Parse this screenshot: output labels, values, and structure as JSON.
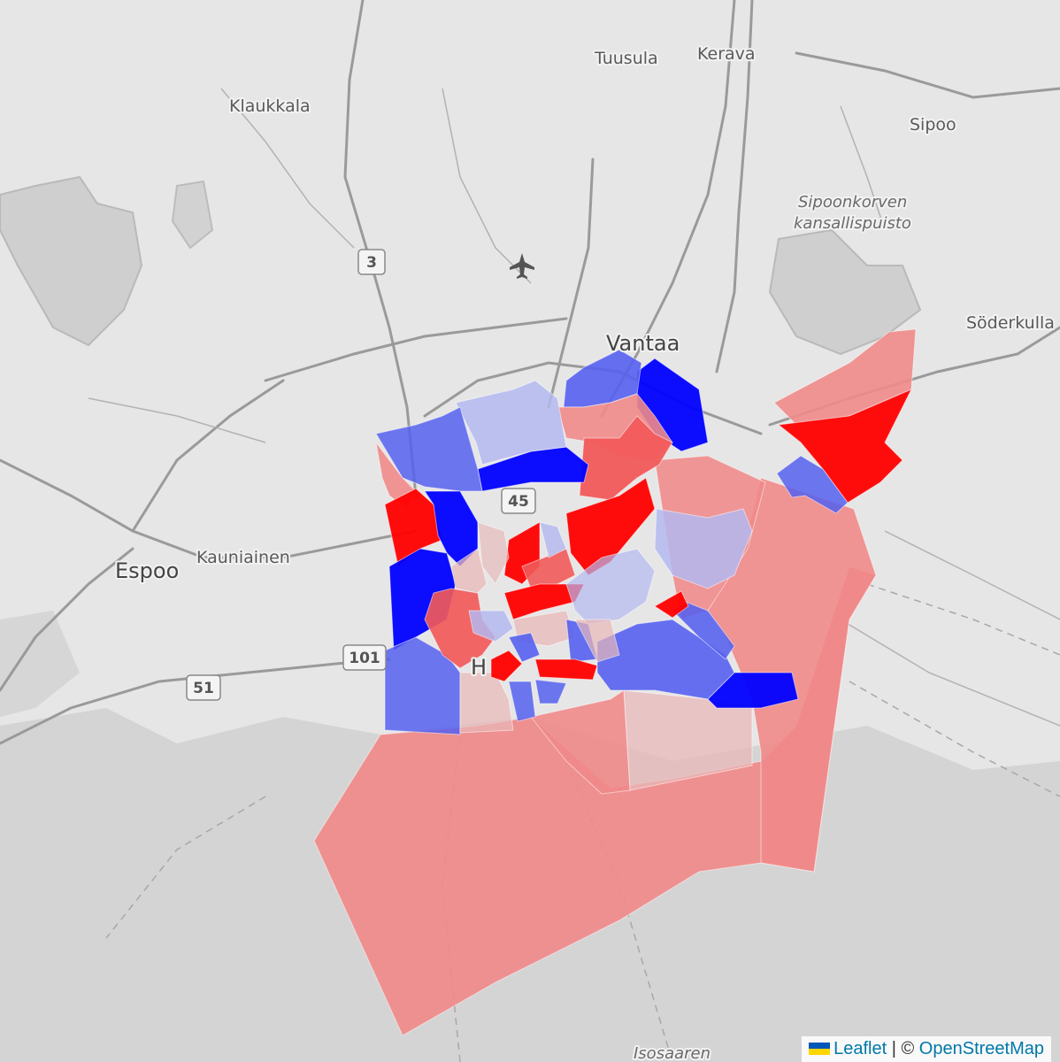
{
  "map": {
    "places": [
      {
        "id": "tuusula",
        "name": "Tuusula"
      },
      {
        "id": "kerava",
        "name": "Kerava"
      },
      {
        "id": "klaukkala",
        "name": "Klaukkala"
      },
      {
        "id": "sipoo",
        "name": "Sipoo"
      },
      {
        "id": "sipoonkorven1",
        "name": "Sipoonkorven"
      },
      {
        "id": "sipoonkorven2",
        "name": "kansallispuisto"
      },
      {
        "id": "vantaa",
        "name": "Vantaa"
      },
      {
        "id": "soderkulla",
        "name": "Söderkulla"
      },
      {
        "id": "espoo",
        "name": "Espoo"
      },
      {
        "id": "kauniainen",
        "name": "Kauniainen"
      },
      {
        "id": "helsinki",
        "name": "H"
      },
      {
        "id": "isosaaren",
        "name": "Isosaaren"
      }
    ],
    "road_shields": [
      "3",
      "45",
      "101",
      "51"
    ],
    "icons": {
      "airport": "airplane-icon"
    },
    "choropleth_colors": {
      "strong_red": "#ff0000",
      "medium_red": "#f25a5a",
      "light_red": "#f08a8a",
      "pale_red": "#e8b8b8",
      "pale_blue": "#b4b8f0",
      "medium_blue": "#5560ee",
      "strong_blue": "#0000ff"
    }
  },
  "attribution": {
    "leaflet": "Leaflet",
    "separator": "|",
    "copyright": "©",
    "osm": "OpenStreetMap"
  }
}
